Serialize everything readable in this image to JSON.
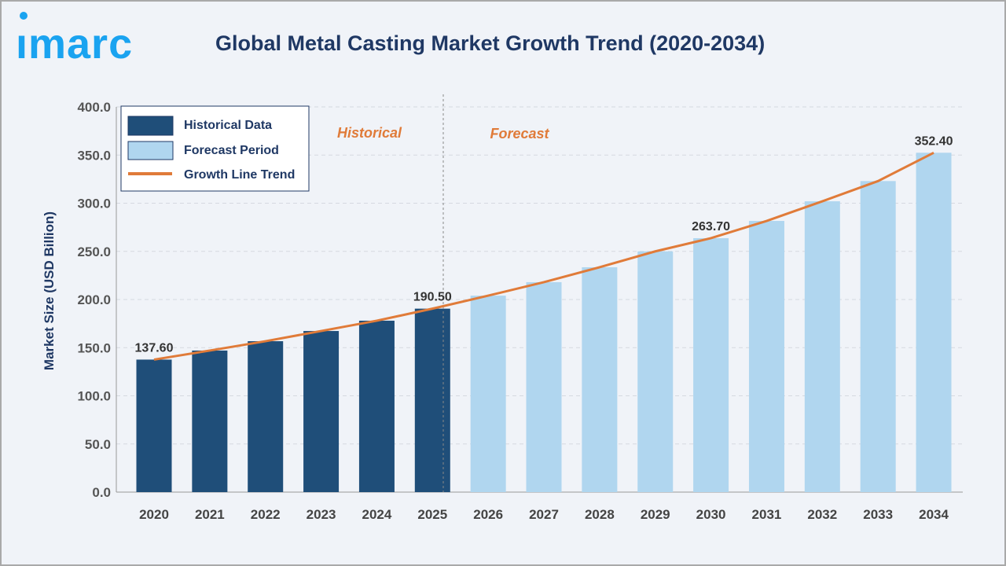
{
  "logo": {
    "text": "imarc",
    "color": "#1aa3f0"
  },
  "title": "Global Metal Casting Market Growth Trend (2020-2034)",
  "chart_data": {
    "type": "bar",
    "title": "Global Metal Casting Market Growth Trend (2020-2034)",
    "xlabel": "",
    "ylabel": "Market Size (USD Billion)",
    "ylim": [
      0,
      400
    ],
    "yticks": [
      "0.0",
      "50.0",
      "100.0",
      "150.0",
      "200.0",
      "250.0",
      "300.0",
      "350.0",
      "400.0"
    ],
    "categories": [
      "2020",
      "2021",
      "2022",
      "2023",
      "2024",
      "2025",
      "2026",
      "2027",
      "2028",
      "2029",
      "2030",
      "2031",
      "2032",
      "2033",
      "2034"
    ],
    "series": [
      {
        "name": "Historical Data",
        "color": "#1f4e79",
        "values": [
          137.6,
          147.0,
          156.7,
          167.3,
          178.0,
          190.5,
          null,
          null,
          null,
          null,
          null,
          null,
          null,
          null,
          null
        ]
      },
      {
        "name": "Forecast Period",
        "color": "#b0d6ef",
        "values": [
          null,
          null,
          null,
          null,
          null,
          null,
          204.0,
          218.0,
          233.5,
          250.0,
          263.7,
          281.6,
          302.0,
          323.0,
          352.4
        ]
      },
      {
        "name": "Growth Line Trend",
        "type": "line",
        "color": "#e07b39",
        "values": [
          137.6,
          147.0,
          156.7,
          167.3,
          178.0,
          190.5,
          204.0,
          218.0,
          233.5,
          250.0,
          263.7,
          281.6,
          302.0,
          323.0,
          352.4
        ]
      }
    ],
    "data_labels": {
      "2020": "137.60",
      "2025": "190.50",
      "2030": "263.70",
      "2034": "352.40"
    },
    "annotations": {
      "historical": "Historical",
      "forecast": "Forecast"
    },
    "legend": "top-left",
    "grid": "horizontal dashed"
  }
}
